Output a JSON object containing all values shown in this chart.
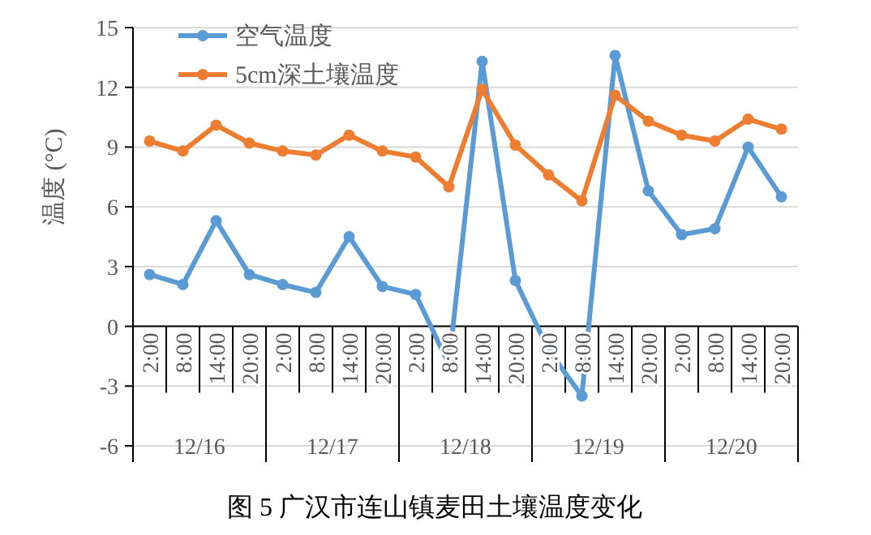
{
  "chart_data": {
    "type": "line",
    "title": "图 5  广汉市连山镇麦田土壤温度变化",
    "ylabel": "温度 (°C)",
    "categories": [
      "2:00",
      "8:00",
      "14:00",
      "20:00",
      "2:00",
      "8:00",
      "14:00",
      "20:00",
      "2:00",
      "8:00",
      "14:00",
      "20:00",
      "2:00",
      "8:00",
      "14:00",
      "20:00",
      "2:00",
      "8:00",
      "14:00",
      "20:00"
    ],
    "annotations": [
      "12/16",
      "12/17",
      "12/18",
      "12/19",
      "12/20"
    ],
    "series": [
      {
        "name": "空气温度",
        "color": "#5b9bd5",
        "values": [
          2.6,
          2.1,
          5.3,
          2.6,
          2.1,
          1.7,
          4.5,
          2.0,
          1.6,
          -1.9,
          13.3,
          2.3,
          -1.2,
          -3.5,
          13.6,
          6.8,
          4.6,
          4.9,
          9.0,
          6.5
        ]
      },
      {
        "name": "5cm深土壤温度",
        "color": "#ed7d31",
        "values": [
          9.3,
          8.8,
          10.1,
          9.2,
          8.8,
          8.6,
          9.6,
          8.8,
          8.5,
          7.0,
          11.9,
          9.1,
          7.6,
          6.3,
          11.6,
          10.3,
          9.6,
          9.3,
          10.4,
          9.9
        ]
      }
    ],
    "ylim": [
      -6,
      15
    ],
    "yticks": [
      -6,
      -3,
      0,
      3,
      6,
      9,
      12,
      15
    ],
    "grid": "y",
    "legend": "top left",
    "marker": "circle",
    "line_style": "solid"
  }
}
